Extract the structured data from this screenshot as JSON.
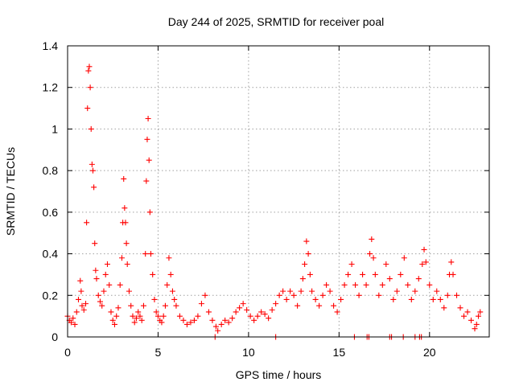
{
  "chart_data": {
    "type": "scatter",
    "title": "Day 244 of 2025, SRMTID for receiver poal",
    "xlabel": "GPS time / hours",
    "ylabel": "SRMTID / TECUs",
    "xlim": [
      0,
      23.3
    ],
    "ylim": [
      0,
      1.4
    ],
    "xticks": [
      0,
      5,
      10,
      15,
      20
    ],
    "xtick_labels": [
      "0",
      "5",
      "10",
      "15",
      "20"
    ],
    "yticks": [
      0,
      0.2,
      0.4,
      0.6,
      0.8,
      1,
      1.2,
      1.4
    ],
    "ytick_labels": [
      "0",
      "0.2",
      "0.4",
      "0.6",
      "0.8",
      "1",
      "1.2",
      "1.4"
    ],
    "grid": true,
    "marker": "plus",
    "marker_color": "#ff0000",
    "series": [
      {
        "name": "SRMTID",
        "points": [
          [
            0.0,
            0.1
          ],
          [
            0.1,
            0.08
          ],
          [
            0.2,
            0.07
          ],
          [
            0.3,
            0.09
          ],
          [
            0.4,
            0.06
          ],
          [
            0.5,
            0.12
          ],
          [
            0.6,
            0.18
          ],
          [
            0.7,
            0.27
          ],
          [
            0.75,
            0.22
          ],
          [
            0.8,
            0.15
          ],
          [
            0.9,
            0.13
          ],
          [
            1.0,
            0.16
          ],
          [
            1.05,
            0.55
          ],
          [
            1.1,
            1.1
          ],
          [
            1.15,
            1.28
          ],
          [
            1.2,
            1.3
          ],
          [
            1.25,
            1.2
          ],
          [
            1.3,
            1.0
          ],
          [
            1.35,
            0.83
          ],
          [
            1.4,
            0.8
          ],
          [
            1.45,
            0.72
          ],
          [
            1.5,
            0.45
          ],
          [
            1.55,
            0.32
          ],
          [
            1.6,
            0.28
          ],
          [
            1.7,
            0.2
          ],
          [
            1.8,
            0.17
          ],
          [
            1.9,
            0.15
          ],
          [
            2.0,
            0.22
          ],
          [
            2.1,
            0.3
          ],
          [
            2.2,
            0.35
          ],
          [
            2.3,
            0.25
          ],
          [
            2.4,
            0.12
          ],
          [
            2.5,
            0.08
          ],
          [
            2.6,
            0.06
          ],
          [
            2.7,
            0.1
          ],
          [
            2.8,
            0.14
          ],
          [
            2.9,
            0.25
          ],
          [
            3.0,
            0.38
          ],
          [
            3.05,
            0.55
          ],
          [
            3.1,
            0.76
          ],
          [
            3.15,
            0.62
          ],
          [
            3.2,
            0.55
          ],
          [
            3.25,
            0.45
          ],
          [
            3.3,
            0.35
          ],
          [
            3.4,
            0.22
          ],
          [
            3.5,
            0.15
          ],
          [
            3.6,
            0.1
          ],
          [
            3.7,
            0.07
          ],
          [
            3.8,
            0.09
          ],
          [
            3.9,
            0.12
          ],
          [
            4.0,
            0.1
          ],
          [
            4.1,
            0.08
          ],
          [
            4.2,
            0.15
          ],
          [
            4.3,
            0.4
          ],
          [
            4.35,
            0.75
          ],
          [
            4.4,
            0.95
          ],
          [
            4.45,
            1.05
          ],
          [
            4.5,
            0.85
          ],
          [
            4.55,
            0.6
          ],
          [
            4.6,
            0.4
          ],
          [
            4.7,
            0.3
          ],
          [
            4.8,
            0.18
          ],
          [
            4.9,
            0.12
          ],
          [
            5.0,
            0.1
          ],
          [
            5.1,
            0.08
          ],
          [
            5.2,
            0.07
          ],
          [
            5.3,
            0.1
          ],
          [
            5.4,
            0.15
          ],
          [
            5.5,
            0.25
          ],
          [
            5.6,
            0.38
          ],
          [
            5.7,
            0.3
          ],
          [
            5.8,
            0.22
          ],
          [
            5.9,
            0.18
          ],
          [
            6.0,
            0.15
          ],
          [
            6.2,
            0.1
          ],
          [
            6.4,
            0.08
          ],
          [
            6.6,
            0.06
          ],
          [
            6.8,
            0.07
          ],
          [
            7.0,
            0.08
          ],
          [
            7.2,
            0.1
          ],
          [
            7.4,
            0.16
          ],
          [
            7.6,
            0.2
          ],
          [
            7.8,
            0.12
          ],
          [
            8.0,
            0.08
          ],
          [
            8.2,
            0.05
          ],
          [
            8.3,
            0.03
          ],
          [
            8.5,
            0.06
          ],
          [
            8.7,
            0.08
          ],
          [
            8.9,
            0.07
          ],
          [
            9.1,
            0.09
          ],
          [
            9.3,
            0.12
          ],
          [
            9.5,
            0.14
          ],
          [
            9.7,
            0.16
          ],
          [
            9.9,
            0.13
          ],
          [
            10.1,
            0.1
          ],
          [
            10.3,
            0.08
          ],
          [
            10.5,
            0.1
          ],
          [
            10.7,
            0.12
          ],
          [
            10.9,
            0.11
          ],
          [
            11.1,
            0.09
          ],
          [
            11.3,
            0.13
          ],
          [
            11.5,
            0.16
          ],
          [
            11.7,
            0.2
          ],
          [
            11.9,
            0.22
          ],
          [
            12.1,
            0.18
          ],
          [
            12.3,
            0.22
          ],
          [
            12.5,
            0.2
          ],
          [
            12.7,
            0.15
          ],
          [
            12.9,
            0.22
          ],
          [
            13.0,
            0.28
          ],
          [
            13.1,
            0.35
          ],
          [
            13.2,
            0.46
          ],
          [
            13.3,
            0.4
          ],
          [
            13.4,
            0.3
          ],
          [
            13.5,
            0.22
          ],
          [
            13.7,
            0.18
          ],
          [
            13.9,
            0.15
          ],
          [
            14.1,
            0.2
          ],
          [
            14.3,
            0.25
          ],
          [
            14.5,
            0.22
          ],
          [
            14.7,
            0.15
          ],
          [
            14.9,
            0.12
          ],
          [
            15.1,
            0.18
          ],
          [
            15.3,
            0.25
          ],
          [
            15.5,
            0.3
          ],
          [
            15.7,
            0.35
          ],
          [
            15.9,
            0.25
          ],
          [
            16.1,
            0.2
          ],
          [
            16.3,
            0.3
          ],
          [
            16.5,
            0.25
          ],
          [
            16.7,
            0.4
          ],
          [
            16.8,
            0.47
          ],
          [
            16.9,
            0.38
          ],
          [
            17.0,
            0.3
          ],
          [
            17.2,
            0.2
          ],
          [
            17.4,
            0.25
          ],
          [
            17.6,
            0.35
          ],
          [
            17.8,
            0.28
          ],
          [
            18.0,
            0.18
          ],
          [
            18.2,
            0.22
          ],
          [
            18.4,
            0.3
          ],
          [
            18.6,
            0.38
          ],
          [
            18.8,
            0.25
          ],
          [
            19.0,
            0.18
          ],
          [
            19.2,
            0.22
          ],
          [
            19.4,
            0.28
          ],
          [
            19.6,
            0.35
          ],
          [
            19.7,
            0.42
          ],
          [
            19.8,
            0.36
          ],
          [
            20.0,
            0.25
          ],
          [
            20.2,
            0.18
          ],
          [
            20.4,
            0.22
          ],
          [
            20.6,
            0.18
          ],
          [
            20.8,
            0.14
          ],
          [
            21.0,
            0.2
          ],
          [
            21.1,
            0.3
          ],
          [
            21.2,
            0.36
          ],
          [
            21.3,
            0.3
          ],
          [
            21.5,
            0.2
          ],
          [
            21.7,
            0.14
          ],
          [
            21.9,
            0.1
          ],
          [
            22.1,
            0.12
          ],
          [
            22.3,
            0.08
          ],
          [
            22.5,
            0.04
          ],
          [
            22.6,
            0.06
          ],
          [
            22.7,
            0.1
          ],
          [
            22.8,
            0.12
          ],
          [
            8.15,
            0.0
          ],
          [
            11.5,
            0.0
          ],
          [
            15.85,
            0.0
          ],
          [
            16.55,
            0.0
          ],
          [
            16.65,
            0.0
          ],
          [
            17.8,
            0.0
          ],
          [
            17.9,
            0.0
          ],
          [
            18.55,
            0.0
          ],
          [
            19.2,
            0.0
          ],
          [
            19.45,
            0.0
          ],
          [
            19.55,
            0.0
          ]
        ]
      }
    ]
  }
}
